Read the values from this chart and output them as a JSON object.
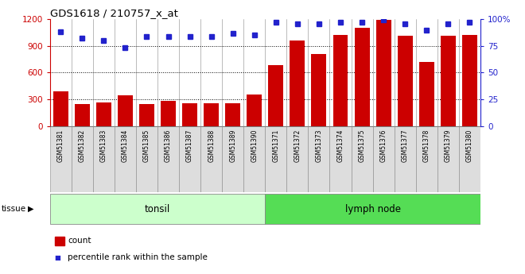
{
  "title": "GDS1618 / 210757_x_at",
  "samples": [
    "GSM51381",
    "GSM51382",
    "GSM51383",
    "GSM51384",
    "GSM51385",
    "GSM51386",
    "GSM51387",
    "GSM51388",
    "GSM51389",
    "GSM51390",
    "GSM51371",
    "GSM51372",
    "GSM51373",
    "GSM51374",
    "GSM51375",
    "GSM51376",
    "GSM51377",
    "GSM51378",
    "GSM51379",
    "GSM51380"
  ],
  "counts": [
    390,
    250,
    265,
    345,
    250,
    280,
    260,
    255,
    260,
    350,
    680,
    960,
    810,
    1020,
    1105,
    1195,
    1010,
    720,
    1010,
    1020
  ],
  "percentiles": [
    88,
    82,
    80,
    73,
    84,
    84,
    84,
    84,
    87,
    85,
    97,
    96,
    96,
    97,
    97,
    99,
    96,
    90,
    96,
    97
  ],
  "bar_color": "#cc0000",
  "dot_color": "#2222cc",
  "left_ylim": [
    0,
    1200
  ],
  "right_ylim": [
    0,
    100
  ],
  "left_yticks": [
    0,
    300,
    600,
    900,
    1200
  ],
  "right_yticks": [
    0,
    25,
    50,
    75,
    100
  ],
  "right_yticklabels": [
    "0",
    "25",
    "50",
    "75",
    "100%"
  ],
  "grid_values": [
    300,
    600,
    900
  ],
  "left_tick_color": "#cc0000",
  "right_tick_color": "#2222cc",
  "tissue_label": "tissue",
  "tonsil_count": 10,
  "tonsil_color": "#ccffcc",
  "lymph_color": "#55dd55",
  "legend_count_label": "count",
  "legend_pct_label": "percentile rank within the sample",
  "cell_bg": "#dddddd",
  "cell_border": "#888888"
}
